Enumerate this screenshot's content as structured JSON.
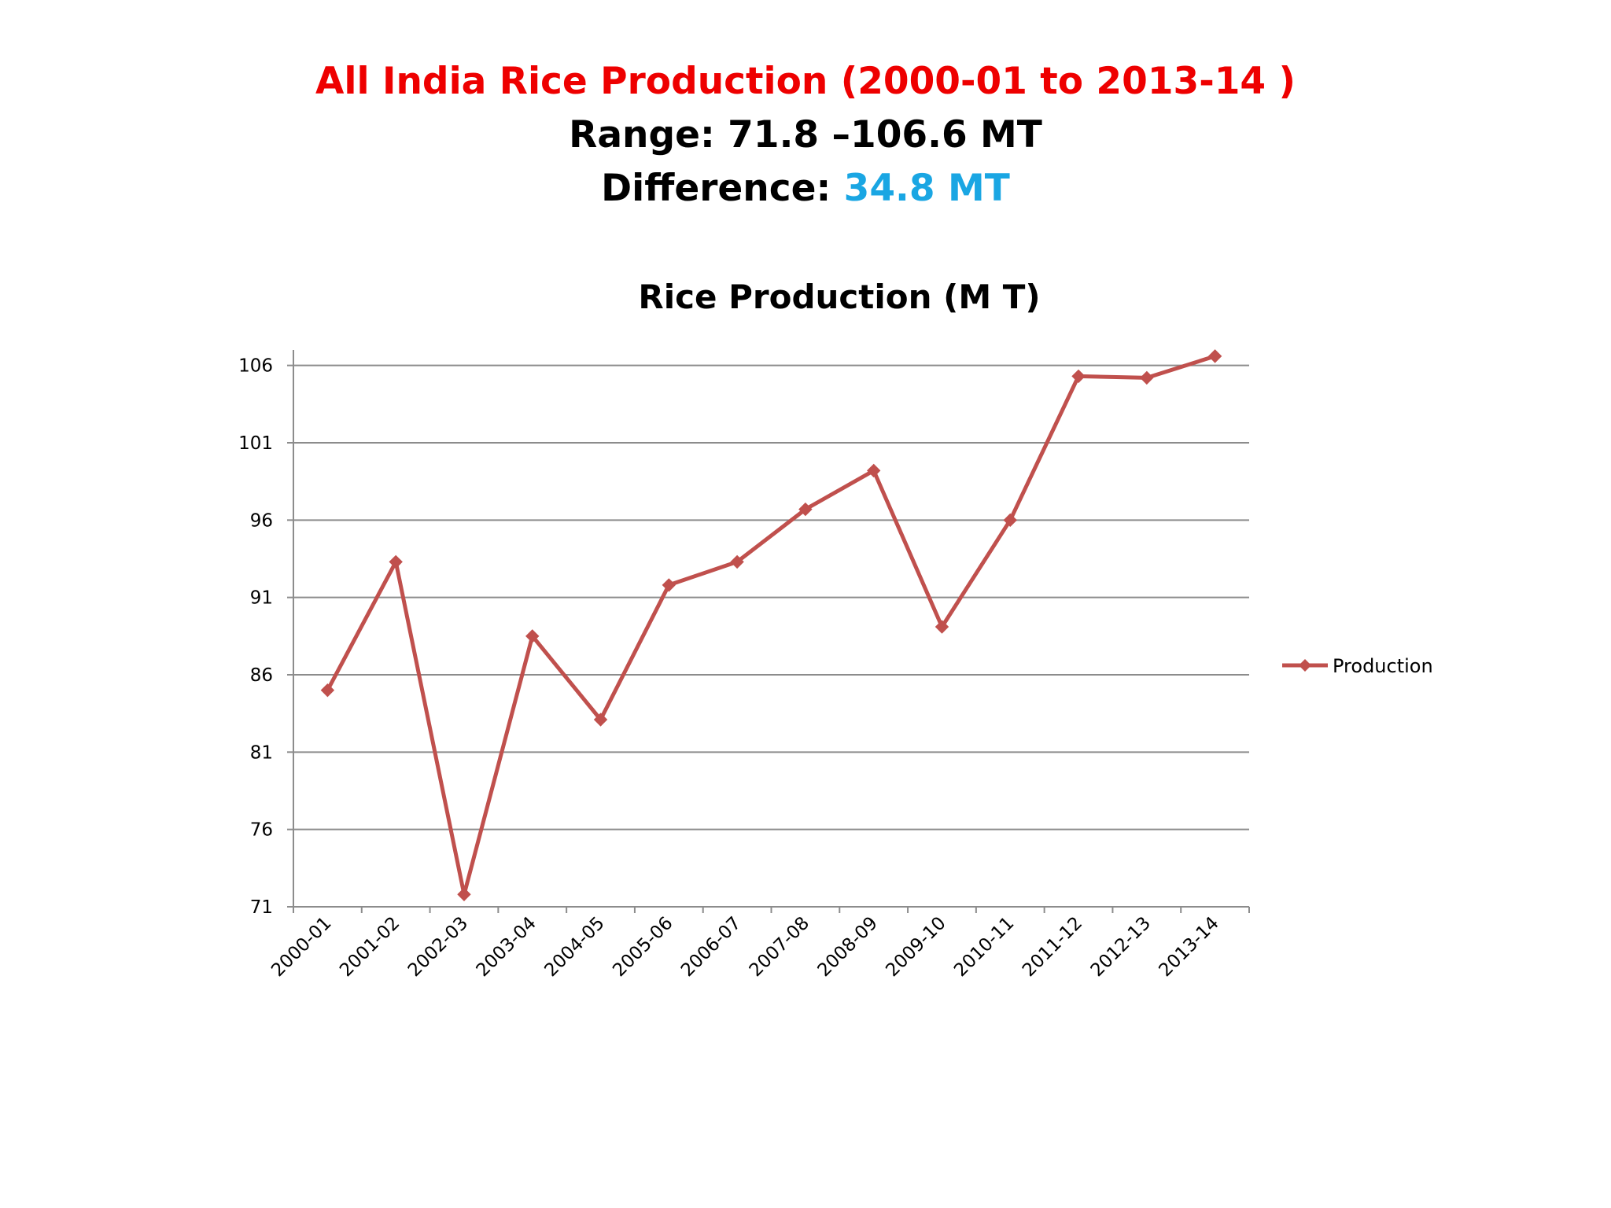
{
  "slide": {
    "title": "All India  Rice Production (2000-01 to 2013-14 )",
    "range": "Range: 71.8 –106.6 MT",
    "difference_label": "Difference: ",
    "difference_value": "34.8 MT"
  },
  "colors": {
    "title": "#ee0000",
    "difference_value": "#1aa6e3",
    "series": "#c0504d",
    "grid": "#8c8c8c"
  },
  "chart_data": {
    "type": "line",
    "title": "Rice Production (M T)",
    "xlabel": "",
    "ylabel": "",
    "categories": [
      "2000-01",
      "2001-02",
      "2002-03",
      "2003-04",
      "2004-05",
      "2005-06",
      "2006-07",
      "2007-08",
      "2008-09",
      "2009-10",
      "2010-11",
      "2011-12",
      "2012-13",
      "2013-14"
    ],
    "series": [
      {
        "name": "Production",
        "values": [
          85.0,
          93.3,
          71.8,
          88.5,
          83.1,
          91.8,
          93.3,
          96.7,
          99.2,
          89.1,
          96.0,
          105.3,
          105.2,
          106.6
        ],
        "marker": "diamond"
      }
    ],
    "ylim": [
      71,
      107
    ],
    "yticks": [
      71,
      76,
      81,
      86,
      91,
      96,
      101,
      106
    ],
    "grid": true,
    "legend": "right"
  }
}
